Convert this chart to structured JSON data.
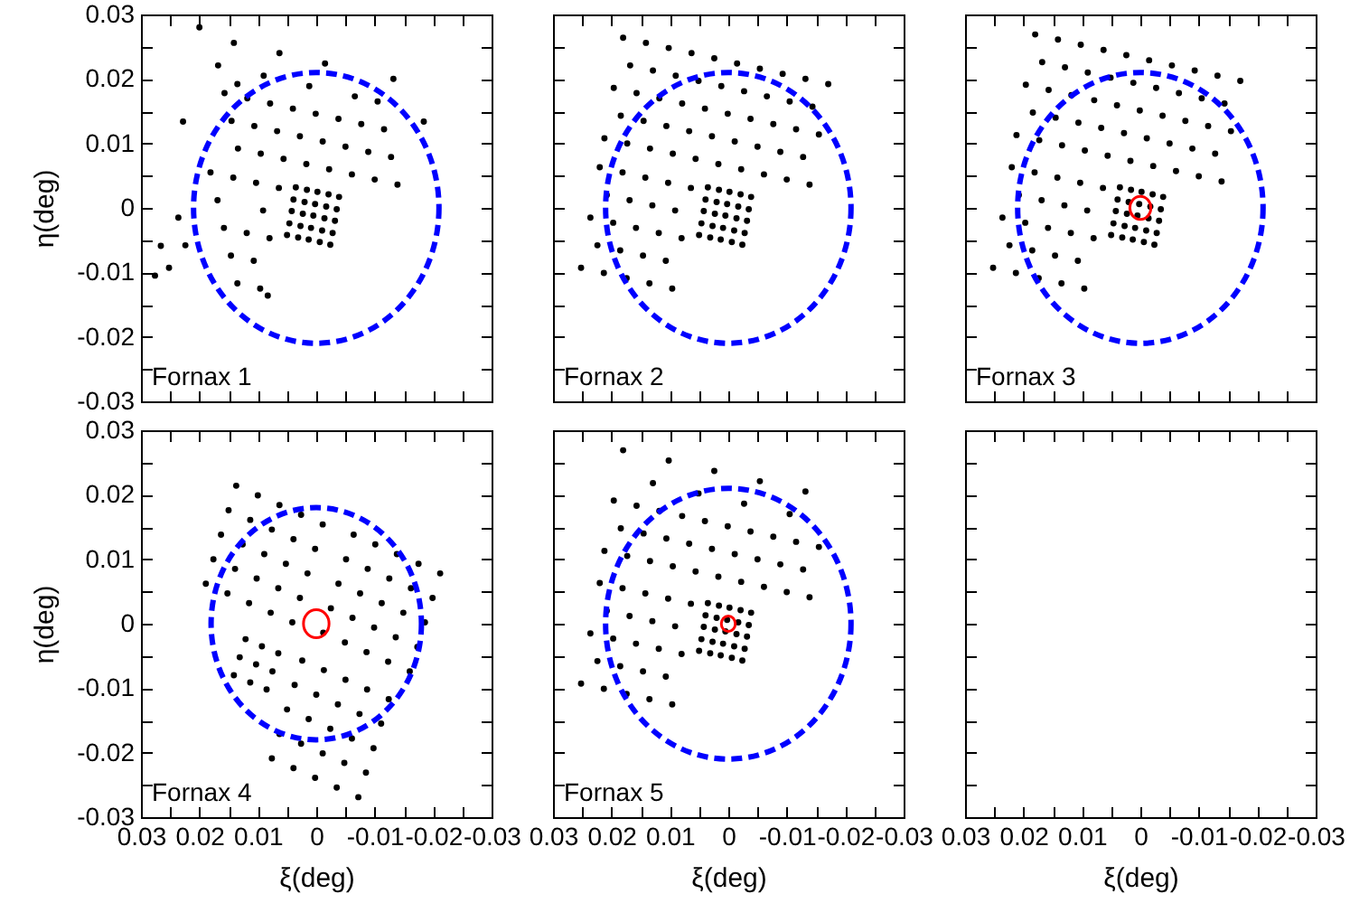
{
  "chart_data": [
    {
      "type": "scatter",
      "xlim": [
        0.03,
        -0.03
      ],
      "ylim": [
        -0.03,
        0.03
      ],
      "xticks": [
        0.03,
        {
          "value": 0.025,
          "label": null
        },
        0.02,
        {
          "value": 0.015,
          "label": null
        },
        0.01,
        {
          "value": 0.005,
          "label": null
        },
        0,
        {
          "value": -0.005,
          "label": null
        },
        -0.01,
        {
          "value": -0.015,
          "label": null
        },
        -0.02,
        {
          "value": -0.025,
          "label": null
        },
        -0.03
      ],
      "yticks": [
        -0.03,
        {
          "value": -0.025,
          "label": null
        },
        -0.02,
        {
          "value": -0.015,
          "label": null
        },
        -0.01,
        {
          "value": -0.005,
          "label": null
        },
        0,
        {
          "value": 0.005,
          "label": null
        },
        0.01,
        {
          "value": 0.015,
          "label": null
        },
        0.02,
        {
          "value": 0.025,
          "label": null
        },
        0.03
      ],
      "ylabel": "η(deg)",
      "tick_labels": "y",
      "annotations": [
        "Fornax 1"
      ],
      "series": [
        {
          "type": "scatter",
          "color": "#000000",
          "marker": "circle",
          "x": [
            0.0141,
            0.0063,
            -0.0015,
            -0.0132,
            0.0168,
            0.009,
            0.0012,
            -0.0066,
            -0.0105,
            0.0157,
            0.0118,
            0.0079,
            0.004,
            0.0001,
            -0.0038,
            -0.0077,
            -0.0116,
            0.0145,
            0.0106,
            0.0067,
            0.0028,
            -0.0011,
            -0.005,
            -0.0089,
            -0.0128,
            0.0134,
            0.0095,
            0.0056,
            0.0017,
            -0.0022,
            -0.0061,
            -0.01,
            -0.0139,
            0.0181,
            0.0142,
            0.0103,
            0.0064,
            0.0169,
            0.0091,
            0.0236,
            0.0158,
            0.0119,
            0.008,
            0.0224,
            0.0146,
            0.0107,
            0.0252,
            0.0135,
            0.0096,
            0.02,
            0.0228,
            0.0266,
            -0.0184,
            0.0135,
            0.0083,
            0.0276,
            0.0035,
            0.0016,
            -0.0002,
            -0.0021,
            -0.0039,
            0.0039,
            0.002,
            0.0002,
            -0.0017,
            -0.0035,
            0.0042,
            0.0023,
            0.0005,
            -0.0014,
            -0.0032,
            0.0046,
            0.0027,
            0.0009,
            -0.001,
            -0.0028,
            0.005,
            0.0031,
            0.0013,
            -0.0006,
            -0.0024
          ],
          "values": [
            0.0256,
            0.024,
            0.0224,
            0.02,
            0.0221,
            0.0205,
            0.0189,
            0.0173,
            0.0165,
            0.0178,
            0.017,
            0.0162,
            0.0154,
            0.0146,
            0.0138,
            0.013,
            0.0122,
            0.0135,
            0.0127,
            0.0119,
            0.0111,
            0.0103,
            0.0095,
            0.0087,
            0.0079,
            0.0092,
            0.0084,
            0.0076,
            0.0068,
            0.006,
            0.0052,
            0.0044,
            0.0036,
            0.0055,
            0.0047,
            0.0039,
            0.0031,
            0.0012,
            -0.0004,
            -0.0015,
            -0.0031,
            -0.0039,
            -0.0047,
            -0.0058,
            -0.0074,
            -0.0082,
            -0.0093,
            -0.0117,
            -0.0125,
            0.028,
            0.0134,
            -0.0059,
            0.0134,
            0.0192,
            -0.0136,
            -0.0105,
            0.0032,
            0.0028,
            0.0025,
            0.0021,
            0.0017,
            0.0013,
            0.0009,
            0.0006,
            0.0002,
            -0.0002,
            -0.0005,
            -0.0009,
            -0.0012,
            -0.0016,
            -0.002,
            -0.0024,
            -0.0028,
            -0.0031,
            -0.0035,
            -0.0039,
            -0.0042,
            -0.0046,
            -0.0049,
            -0.0053,
            -0.0057
          ]
        }
      ]
    },
    {
      "type": "scatter",
      "xlim": [
        0.03,
        -0.03
      ],
      "ylim": [
        -0.03,
        0.03
      ],
      "xticks": [
        0.03,
        {
          "value": 0.025,
          "label": null
        },
        0.02,
        {
          "value": 0.015,
          "label": null
        },
        0.01,
        {
          "value": 0.005,
          "label": null
        },
        0,
        {
          "value": -0.005,
          "label": null
        },
        -0.01,
        {
          "value": -0.015,
          "label": null
        },
        -0.02,
        {
          "value": -0.025,
          "label": null
        },
        -0.03
      ],
      "yticks": [
        -0.03,
        {
          "value": -0.025,
          "label": null
        },
        -0.02,
        {
          "value": -0.015,
          "label": null
        },
        -0.01,
        {
          "value": -0.005,
          "label": null
        },
        0,
        {
          "value": 0.005,
          "label": null
        },
        0.01,
        {
          "value": 0.015,
          "label": null
        },
        0.02,
        {
          "value": 0.025,
          "label": null
        },
        0.03
      ],
      "tick_labels": false,
      "annotations": [
        "Fornax 2"
      ],
      "series": [
        {
          "type": "scatter",
          "color": "#000000",
          "marker": "circle",
          "x": [
            0.018,
            0.0141,
            0.0102,
            0.0063,
            0.0024,
            -0.0015,
            -0.0054,
            -0.0093,
            -0.0132,
            -0.0171,
            0.0168,
            0.0129,
            0.009,
            0.0051,
            0.0012,
            -0.0027,
            -0.0066,
            -0.0105,
            -0.0144,
            0.0196,
            0.0157,
            0.0118,
            0.0079,
            0.004,
            0.0001,
            -0.0038,
            -0.0077,
            -0.0116,
            -0.0155,
            0.0184,
            0.0145,
            0.0106,
            0.0067,
            0.0028,
            -0.0011,
            -0.005,
            -0.0089,
            -0.0128,
            0.0212,
            0.0173,
            0.0134,
            0.0095,
            0.0056,
            0.0017,
            -0.0022,
            -0.0061,
            -0.01,
            -0.0139,
            0.022,
            0.0181,
            0.0142,
            0.0103,
            0.0064,
            0.0208,
            0.0169,
            0.013,
            0.0091,
            0.0236,
            0.0197,
            0.0158,
            0.0119,
            0.008,
            0.0224,
            0.0185,
            0.0146,
            0.0107,
            0.0252,
            0.0213,
            0.0174,
            0.0135,
            0.0096,
            0.0035,
            0.0016,
            -0.0002,
            -0.0021,
            -0.0039,
            0.0039,
            0.002,
            0.0002,
            -0.0017,
            -0.0035,
            0.0042,
            0.0023,
            0.0005,
            -0.0014,
            -0.0032,
            0.0046,
            0.0027,
            0.0009,
            -0.001,
            -0.0028,
            0.005,
            0.0031,
            0.0013,
            -0.0006,
            -0.0024
          ],
          "values": [
            0.0264,
            0.0256,
            0.0248,
            0.024,
            0.0232,
            0.0224,
            0.0216,
            0.0208,
            0.02,
            0.0192,
            0.0221,
            0.0213,
            0.0205,
            0.0197,
            0.0189,
            0.0181,
            0.0173,
            0.0165,
            0.0157,
            0.0186,
            0.0178,
            0.017,
            0.0162,
            0.0154,
            0.0146,
            0.0138,
            0.013,
            0.0122,
            0.0114,
            0.0143,
            0.0135,
            0.0127,
            0.0119,
            0.0111,
            0.0103,
            0.0095,
            0.0087,
            0.0079,
            0.0108,
            0.01,
            0.0092,
            0.0084,
            0.0076,
            0.0068,
            0.006,
            0.0052,
            0.0044,
            0.0036,
            0.0063,
            0.0055,
            0.0047,
            0.0039,
            0.0031,
            0.002,
            0.0012,
            0.0004,
            -0.0004,
            -0.0015,
            -0.0023,
            -0.0031,
            -0.0039,
            -0.0047,
            -0.0058,
            -0.0066,
            -0.0074,
            -0.0082,
            -0.0093,
            -0.0101,
            -0.0109,
            -0.0117,
            -0.0125,
            0.0032,
            0.0028,
            0.0025,
            0.0021,
            0.0017,
            0.0013,
            0.0009,
            0.0006,
            0.0002,
            -0.0002,
            -0.0005,
            -0.0009,
            -0.0012,
            -0.0016,
            -0.002,
            -0.0024,
            -0.0028,
            -0.0031,
            -0.0035,
            -0.0039,
            -0.0042,
            -0.0046,
            -0.0049,
            -0.0053,
            -0.0057
          ]
        }
      ]
    },
    {
      "type": "scatter",
      "xlim": [
        0.03,
        -0.03
      ],
      "ylim": [
        -0.03,
        0.03
      ],
      "xticks": [
        0.03,
        {
          "value": 0.025,
          "label": null
        },
        0.02,
        {
          "value": 0.015,
          "label": null
        },
        0.01,
        {
          "value": 0.005,
          "label": null
        },
        0,
        {
          "value": -0.005,
          "label": null
        },
        -0.01,
        {
          "value": -0.015,
          "label": null
        },
        -0.02,
        {
          "value": -0.025,
          "label": null
        },
        -0.03
      ],
      "yticks": [
        -0.03,
        {
          "value": -0.025,
          "label": null
        },
        -0.02,
        {
          "value": -0.015,
          "label": null
        },
        -0.01,
        {
          "value": -0.005,
          "label": null
        },
        0,
        {
          "value": 0.005,
          "label": null
        },
        0.01,
        {
          "value": 0.015,
          "label": null
        },
        0.02,
        {
          "value": 0.025,
          "label": null
        },
        0.03
      ],
      "tick_labels": false,
      "annotations": [
        "Fornax 3"
      ],
      "series": [
        {
          "type": "scatter",
          "color": "#000000",
          "marker": "circle",
          "x": [
            0.018,
            0.0141,
            0.0102,
            0.0063,
            0.0024,
            -0.0015,
            -0.0054,
            -0.0093,
            -0.0132,
            -0.0171,
            0.0168,
            0.0129,
            0.009,
            0.0051,
            0.0012,
            -0.0027,
            -0.0066,
            -0.0105,
            -0.0144,
            0.0196,
            0.0157,
            0.0118,
            0.0079,
            0.004,
            0.0001,
            -0.0038,
            -0.0077,
            -0.0116,
            -0.0155,
            0.0184,
            0.0145,
            0.0106,
            0.0067,
            0.0028,
            -0.0011,
            -0.005,
            -0.0089,
            -0.0128,
            0.0212,
            0.0173,
            0.0134,
            0.0095,
            0.0056,
            0.0017,
            -0.0022,
            -0.0061,
            -0.01,
            -0.0139,
            0.022,
            0.0181,
            0.0142,
            0.0103,
            0.0064,
            0.0208,
            0.0169,
            0.013,
            0.0091,
            0.0236,
            0.0197,
            0.0158,
            0.0119,
            0.008,
            0.0224,
            0.0185,
            0.0146,
            0.0107,
            0.0252,
            0.0213,
            0.0174,
            0.0135,
            0.0096,
            0.0035,
            0.0016,
            -0.0002,
            -0.0021,
            -0.0039,
            0.0039,
            0.002,
            0.0002,
            -0.0017,
            -0.0035,
            0.0042,
            0.0023,
            0.0005,
            -0.0014,
            -0.0032,
            0.0046,
            0.0027,
            0.0009,
            -0.001,
            -0.0028,
            0.005,
            0.0031,
            0.0013,
            -0.0006,
            -0.0024
          ],
          "values": [
            0.0269,
            0.0261,
            0.0253,
            0.0245,
            0.0237,
            0.0229,
            0.0221,
            0.0213,
            0.0205,
            0.0197,
            0.0226,
            0.0218,
            0.021,
            0.0202,
            0.0194,
            0.0186,
            0.0178,
            0.017,
            0.0162,
            0.0191,
            0.0183,
            0.0175,
            0.0167,
            0.0159,
            0.0151,
            0.0143,
            0.0135,
            0.0127,
            0.0119,
            0.0148,
            0.014,
            0.0132,
            0.0124,
            0.0116,
            0.0108,
            0.01,
            0.0092,
            0.0084,
            0.0113,
            0.0105,
            0.0097,
            0.0089,
            0.0081,
            0.0073,
            0.0065,
            0.0057,
            0.0049,
            0.0041,
            0.0063,
            0.0055,
            0.0047,
            0.0039,
            0.0031,
            0.002,
            0.0012,
            0.0004,
            -0.0004,
            -0.0015,
            -0.0023,
            -0.0031,
            -0.0039,
            -0.0047,
            -0.0058,
            -0.0066,
            -0.0074,
            -0.0082,
            -0.0093,
            -0.0101,
            -0.0109,
            -0.0117,
            -0.0125,
            0.0032,
            0.0028,
            0.0025,
            0.0021,
            0.0017,
            0.0013,
            0.0009,
            0.0006,
            0.0002,
            -0.0002,
            -0.0005,
            -0.0009,
            -0.0012,
            -0.0016,
            -0.002,
            -0.0024,
            -0.0028,
            -0.0031,
            -0.0035,
            -0.0039,
            -0.0042,
            -0.0046,
            -0.0049,
            -0.0053,
            -0.0057
          ]
        }
      ]
    },
    {
      "type": "scatter",
      "xlim": [
        0.03,
        -0.03
      ],
      "ylim": [
        -0.03,
        0.03
      ],
      "xticks": [
        0.03,
        {
          "value": 0.025,
          "label": null
        },
        0.02,
        {
          "value": 0.015,
          "label": null
        },
        0.01,
        {
          "value": 0.005,
          "label": null
        },
        0,
        {
          "value": -0.005,
          "label": null
        },
        -0.01,
        {
          "value": -0.015,
          "label": null
        },
        -0.02,
        {
          "value": -0.025,
          "label": null
        },
        -0.03
      ],
      "yticks": [
        -0.03,
        {
          "value": -0.025,
          "label": null
        },
        -0.02,
        {
          "value": -0.015,
          "label": null
        },
        -0.01,
        {
          "value": -0.005,
          "label": null
        },
        0,
        {
          "value": 0.005,
          "label": null
        },
        0.01,
        {
          "value": 0.015,
          "label": null
        },
        0.02,
        {
          "value": 0.025,
          "label": null
        },
        0.03
      ],
      "xlabel": "ξ(deg)",
      "ylabel": "η(deg)",
      "annotations": [
        "Fornax 4"
      ],
      "series": [
        {
          "type": "scatter",
          "color": "#000000",
          "marker": "circle",
          "x": [
            0.0137,
            0.01,
            0.0063,
            0.0026,
            -0.0011,
            0.015,
            0.0113,
            0.0076,
            0.0039,
            0.0002,
            0.0163,
            0.0126,
            0.0089,
            0.0052,
            0.0015,
            0.0176,
            0.0139,
            0.0102,
            0.0065,
            0.0028,
            0.0189,
            0.0152,
            0.0115,
            0.0078,
            0.0041,
            -0.0064,
            -0.0101,
            -0.0138,
            -0.0175,
            -0.0212,
            -0.0051,
            -0.0088,
            -0.0125,
            -0.0162,
            -0.0199,
            -0.0038,
            -0.0075,
            -0.0112,
            -0.0149,
            -0.0186,
            -0.0025,
            -0.0062,
            -0.0099,
            -0.0136,
            -0.0173,
            -0.0012,
            -0.0049,
            -0.0086,
            -0.0123,
            -0.016,
            0.0024,
            -0.0013,
            -0.005,
            -0.0087,
            -0.0124,
            0.0037,
            0,
            -0.0037,
            -0.0074,
            -0.0111,
            0.005,
            0.0013,
            -0.0024,
            -0.0061,
            -0.0098,
            0.0063,
            0.0026,
            -0.0011,
            -0.0048,
            -0.0085,
            0.0076,
            0.0039,
            0.0002,
            -0.0035,
            -0.0072,
            0.0121,
            0.0093,
            0.0065,
            0.0131,
            0.0103,
            0.0075,
            0.0141,
            0.0113,
            0.0085
          ],
          "values": [
            0.0214,
            0.0199,
            0.0184,
            0.0169,
            0.0154,
            0.0176,
            0.0161,
            0.0146,
            0.0131,
            0.0116,
            0.0138,
            0.0123,
            0.0108,
            0.0093,
            0.0078,
            0.01,
            0.0085,
            0.007,
            0.0055,
            0.004,
            0.0062,
            0.0047,
            0.0032,
            0.0017,
            0.0002,
            0.0138,
            0.0123,
            0.0108,
            0.0093,
            0.0078,
            0.01,
            0.0085,
            0.007,
            0.0055,
            0.004,
            0.0062,
            0.0047,
            0.0032,
            0.0017,
            0.0002,
            0.0024,
            0.0009,
            -0.0006,
            -0.0021,
            -0.0036,
            -0.0014,
            -0.0029,
            -0.0044,
            -0.0059,
            -0.0074,
            -0.0057,
            -0.0072,
            -0.0087,
            -0.0102,
            -0.0117,
            -0.0095,
            -0.011,
            -0.0125,
            -0.014,
            -0.0155,
            -0.0133,
            -0.0148,
            -0.0163,
            -0.0178,
            -0.0193,
            -0.0171,
            -0.0186,
            -0.0201,
            -0.0216,
            -0.0231,
            -0.0209,
            -0.0224,
            -0.0239,
            -0.0254,
            -0.0269,
            -0.0024,
            -0.0035,
            -0.0046,
            -0.0052,
            -0.0063,
            -0.0074,
            -0.008,
            -0.0091,
            -0.0102
          ]
        }
      ]
    },
    {
      "type": "scatter",
      "xlim": [
        0.03,
        -0.03
      ],
      "ylim": [
        -0.03,
        0.03
      ],
      "xticks": [
        0.03,
        {
          "value": 0.025,
          "label": null
        },
        0.02,
        {
          "value": 0.015,
          "label": null
        },
        0.01,
        {
          "value": 0.005,
          "label": null
        },
        0,
        {
          "value": -0.005,
          "label": null
        },
        -0.01,
        {
          "value": -0.015,
          "label": null
        },
        -0.02,
        {
          "value": -0.025,
          "label": null
        },
        -0.03
      ],
      "yticks": [
        -0.03,
        {
          "value": -0.025,
          "label": null
        },
        -0.02,
        {
          "value": -0.015,
          "label": null
        },
        -0.01,
        {
          "value": -0.005,
          "label": null
        },
        0,
        {
          "value": 0.005,
          "label": null
        },
        0.01,
        {
          "value": 0.015,
          "label": null
        },
        0.02,
        {
          "value": 0.025,
          "label": null
        },
        0.03
      ],
      "xlabel": "ξ(deg)",
      "tick_labels": "x",
      "annotations": [
        "Fornax 5"
      ],
      "series": [
        {
          "type": "scatter",
          "color": "#000000",
          "marker": "circle",
          "x": [
            0.018,
            0.0102,
            0.0024,
            -0.0054,
            -0.0132,
            0.0129,
            0.0051,
            -0.0027,
            -0.0105,
            0.0196,
            0.0157,
            0.0118,
            0.0079,
            0.004,
            0.0001,
            -0.0038,
            -0.0077,
            -0.0116,
            -0.0155,
            0.0184,
            0.0145,
            0.0106,
            0.0067,
            0.0028,
            -0.0011,
            -0.005,
            -0.0089,
            -0.0128,
            0.0212,
            0.0173,
            0.0134,
            0.0095,
            0.0056,
            0.0017,
            -0.0022,
            -0.0061,
            -0.01,
            -0.0139,
            0.022,
            0.0181,
            0.0142,
            0.0103,
            0.0064,
            0.0208,
            0.0169,
            0.013,
            0.0091,
            0.0236,
            0.0197,
            0.0158,
            0.0119,
            0.008,
            0.0224,
            0.0185,
            0.0146,
            0.0107,
            0.0252,
            0.0213,
            0.0174,
            0.0135,
            0.0096,
            0.0035,
            0.0016,
            -0.0002,
            -0.0021,
            -0.0039,
            0.0039,
            0.002,
            0.0002,
            -0.0017,
            -0.0035,
            0.0042,
            0.0023,
            0.0005,
            -0.0014,
            -0.0032,
            0.0046,
            0.0027,
            0.0009,
            -0.001,
            -0.0028,
            0.005,
            0.0031,
            0.0013,
            -0.0006,
            -0.0024
          ],
          "values": [
            0.0269,
            0.0253,
            0.0237,
            0.0221,
            0.0205,
            0.0218,
            0.0202,
            0.0186,
            0.017,
            0.0191,
            0.0183,
            0.0175,
            0.0167,
            0.0159,
            0.0151,
            0.0143,
            0.0135,
            0.0127,
            0.0119,
            0.0148,
            0.014,
            0.0132,
            0.0124,
            0.0116,
            0.0108,
            0.01,
            0.0092,
            0.0084,
            0.0113,
            0.0105,
            0.0097,
            0.0089,
            0.0081,
            0.0073,
            0.0065,
            0.0057,
            0.0049,
            0.0041,
            0.0063,
            0.0055,
            0.0047,
            0.0039,
            0.0031,
            0.002,
            0.0012,
            0.0004,
            -0.0004,
            -0.0015,
            -0.0023,
            -0.0031,
            -0.0039,
            -0.0047,
            -0.0058,
            -0.0066,
            -0.0074,
            -0.0082,
            -0.0093,
            -0.0101,
            -0.0109,
            -0.0117,
            -0.0125,
            0.0032,
            0.0028,
            0.0025,
            0.0021,
            0.0017,
            0.0013,
            0.0009,
            0.0006,
            0.0002,
            -0.0002,
            -0.0005,
            -0.0009,
            -0.0012,
            -0.0016,
            -0.002,
            -0.0024,
            -0.0028,
            -0.0031,
            -0.0035,
            -0.0039,
            -0.0042,
            -0.0046,
            -0.0049,
            -0.0053,
            -0.0057
          ]
        }
      ]
    },
    {
      "type": "scatter",
      "xlim": [
        0.03,
        -0.03
      ],
      "ylim": [
        -0.03,
        0.03
      ],
      "xticks": [
        0.03,
        {
          "value": 0.025,
          "label": null
        },
        0.02,
        {
          "value": 0.015,
          "label": null
        },
        0.01,
        {
          "value": 0.005,
          "label": null
        },
        0,
        {
          "value": -0.005,
          "label": null
        },
        -0.01,
        {
          "value": -0.015,
          "label": null
        },
        -0.02,
        {
          "value": -0.025,
          "label": null
        },
        -0.03
      ],
      "yticks": [
        -0.03,
        {
          "value": -0.025,
          "label": null
        },
        -0.02,
        {
          "value": -0.015,
          "label": null
        },
        -0.01,
        {
          "value": -0.005,
          "label": null
        },
        0,
        {
          "value": 0.005,
          "label": null
        },
        0.01,
        {
          "value": 0.015,
          "label": null
        },
        0.02,
        {
          "value": 0.025,
          "label": null
        },
        0.03
      ],
      "xlabel": "ξ(deg)",
      "tick_labels": "x"
    }
  ]
}
